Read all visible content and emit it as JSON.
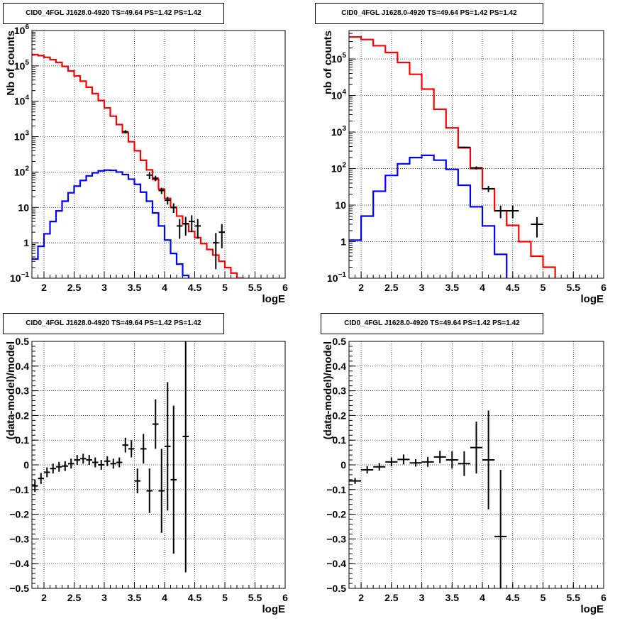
{
  "panels": [
    {
      "title": "CID0_4FGL J1628.0-4920 TS=49.64 PS=1.42 PS=1.42",
      "chart_data": {
        "type": "line",
        "xlabel": "logE",
        "ylabel": "Nb of counts",
        "xlim": [
          1.8,
          6.0
        ],
        "ylim": [
          0.1,
          1000000
        ],
        "yscale": "log",
        "grid": true,
        "xticks": [
          "2",
          "2.5",
          "3",
          "3.5",
          "4",
          "4.5",
          "5",
          "5.5",
          "6"
        ],
        "yticks": [
          "10^-1",
          "1",
          "10",
          "10^2",
          "10^3",
          "10^4",
          "10^5",
          "10^6"
        ],
        "bin_edges": [
          1.8,
          1.9,
          2.0,
          2.1,
          2.2,
          2.3,
          2.4,
          2.5,
          2.6,
          2.7,
          2.8,
          2.9,
          3.0,
          3.1,
          3.2,
          3.3,
          3.4,
          3.5,
          3.6,
          3.7,
          3.8,
          3.9,
          4.0,
          4.1,
          4.2,
          4.3,
          4.4,
          4.5,
          4.6,
          4.7,
          4.8,
          4.9,
          5.0,
          5.1,
          5.2,
          5.3,
          5.4,
          5.5,
          5.6,
          5.7,
          5.8,
          5.9,
          6.0
        ],
        "series": [
          {
            "color": "#ff0000",
            "style": "step",
            "values": [
              210000,
              195000,
              175000,
              150000,
              125000,
              97000,
              72000,
              52000,
              37000,
              25000,
              16500,
              10500,
              6500,
              3800,
              2200,
              1300,
              720,
              400,
              215,
              115,
              62,
              33,
              18,
              10,
              5.7,
              3.4,
              2.1,
              1.4,
              0.95,
              0.65,
              0.45,
              0.3,
              0.2,
              0.14,
              0.1,
              0.07,
              0.06,
              0.06,
              0.06,
              0.06,
              0.06,
              0.06
            ]
          },
          {
            "color": "#0000ff",
            "style": "step",
            "values": [
              0.35,
              0.8,
              1.8,
              4,
              8,
              15,
              26,
              40,
              58,
              78,
              95,
              108,
              113,
              112,
              100,
              85,
              63,
              45,
              27,
              15,
              7,
              3,
              1.2,
              0.5,
              0.25,
              0.12,
              0.06,
              0.06,
              0.06,
              0.06,
              0.06,
              0.06,
              0.06,
              0.06,
              0.06,
              0.06,
              0.06,
              0.06,
              0.06,
              0.06,
              0.06,
              0.06
            ]
          },
          {
            "color": "#000000",
            "style": "points",
            "points": [
              [
                3.35,
                1380,
                150,
                150,
                0.05
              ],
              [
                3.75,
                82,
                18,
                18,
                0.05
              ],
              [
                3.85,
                67,
                12,
                12,
                0.05
              ],
              [
                3.95,
                30,
                6,
                6,
                0.05
              ],
              [
                4.05,
                16,
                4,
                4,
                0.05
              ],
              [
                4.15,
                10,
                3,
                3,
                0.05
              ],
              [
                4.25,
                3,
                1.7,
                1.7,
                0.05
              ],
              [
                4.35,
                3.5,
                1.9,
                1.9,
                0.05
              ],
              [
                4.45,
                4,
                2,
                2,
                0.05
              ],
              [
                4.55,
                3,
                1.7,
                1.7,
                0.05
              ],
              [
                4.85,
                1,
                0.9,
                0.82,
                0.05
              ],
              [
                4.95,
                2,
                1.4,
                1.3,
                0.05
              ]
            ]
          }
        ]
      }
    },
    {
      "title": "CID0_4FGL J1628.0-4920 TS=49.64 PS=1.42 PS=1.42",
      "chart_data": {
        "type": "line",
        "xlabel": "logE",
        "ylabel": "nb of counts",
        "xlim": [
          1.8,
          6.0
        ],
        "ylim": [
          0.1,
          600000
        ],
        "yscale": "log",
        "grid": true,
        "xticks": [
          "2",
          "2.5",
          "3",
          "3.5",
          "4",
          "4.5",
          "5",
          "5.5",
          "6"
        ],
        "yticks": [
          "10^-1",
          "1",
          "10",
          "10^2",
          "10^3",
          "10^4",
          "10^5"
        ],
        "bin_edges": [
          1.8,
          2.0,
          2.2,
          2.4,
          2.6,
          2.8,
          3.0,
          3.2,
          3.4,
          3.6,
          3.8,
          4.0,
          4.2,
          4.4,
          4.6,
          4.8,
          5.0,
          5.2,
          5.4,
          5.6,
          5.8,
          6.0
        ],
        "series": [
          {
            "color": "#ff0000",
            "style": "step",
            "values": [
              400000,
              340000,
              230000,
              150000,
              80000,
              38000,
              15000,
              4200,
              1300,
              370,
              100,
              28,
              7,
              2.8,
              1,
              0.4,
              0.2,
              0.06,
              0.06,
              0.06,
              0.06
            ]
          },
          {
            "color": "#0000ff",
            "style": "step",
            "values": [
              1.1,
              5,
              24,
              65,
              135,
              200,
              230,
              170,
              95,
              35,
              9,
              2.7,
              0.45,
              0.06,
              0.06,
              0.06,
              0.06,
              0.06,
              0.06,
              0.06,
              0.06
            ]
          },
          {
            "color": "#000000",
            "style": "points",
            "points": [
              [
                3.7,
                380,
                20,
                20,
                0.1
              ],
              [
                3.9,
                105,
                10,
                10,
                0.1
              ],
              [
                4.1,
                28,
                5.3,
                5.3,
                0.1
              ],
              [
                4.3,
                7,
                2.6,
                2.6,
                0.1
              ],
              [
                4.5,
                7,
                2.6,
                2.6,
                0.1
              ],
              [
                4.9,
                3,
                1.7,
                1.7,
                0.1
              ]
            ]
          }
        ]
      }
    },
    {
      "title": "CID0_4FGL J1628.0-4920 TS=49.64 PS=1.42 PS=1.42",
      "chart_data": {
        "type": "scatter",
        "xlabel": "logE",
        "ylabel": "(data-model)/model",
        "xlim": [
          1.8,
          6.0
        ],
        "ylim": [
          -0.5,
          0.5
        ],
        "grid": true,
        "xticks": [
          "2",
          "2.5",
          "3",
          "3.5",
          "4",
          "4.5",
          "5",
          "5.5",
          "6"
        ],
        "yticks": [
          "-0.5",
          "-0.4",
          "-0.3",
          "-0.2",
          "-0.1",
          "0",
          "0.1",
          "0.2",
          "0.3",
          "0.4",
          "0.5"
        ],
        "points": [
          [
            1.85,
            -0.085,
            0.025,
            0.05
          ],
          [
            1.95,
            -0.055,
            0.022,
            0.05
          ],
          [
            2.05,
            -0.03,
            0.02,
            0.05
          ],
          [
            2.15,
            -0.015,
            0.02,
            0.05
          ],
          [
            2.25,
            -0.008,
            0.02,
            0.05
          ],
          [
            2.35,
            -0.005,
            0.02,
            0.05
          ],
          [
            2.45,
            0.005,
            0.02,
            0.05
          ],
          [
            2.55,
            0.02,
            0.02,
            0.05
          ],
          [
            2.65,
            0.025,
            0.02,
            0.05
          ],
          [
            2.75,
            0.02,
            0.02,
            0.05
          ],
          [
            2.85,
            0.01,
            0.02,
            0.05
          ],
          [
            2.95,
            0.0,
            0.02,
            0.05
          ],
          [
            3.05,
            0.015,
            0.02,
            0.05
          ],
          [
            3.15,
            0.005,
            0.02,
            0.05
          ],
          [
            3.25,
            0.01,
            0.02,
            0.05
          ],
          [
            3.35,
            0.08,
            0.03,
            0.05
          ],
          [
            3.45,
            0.065,
            0.035,
            0.05
          ],
          [
            3.55,
            -0.065,
            0.05,
            0.05
          ],
          [
            3.65,
            0.065,
            0.06,
            0.05
          ],
          [
            3.75,
            -0.105,
            0.09,
            0.05
          ],
          [
            3.85,
            0.165,
            0.1,
            0.05
          ],
          [
            3.95,
            -0.105,
            0.17,
            0.05
          ],
          [
            4.05,
            0.075,
            0.26,
            0.05
          ],
          [
            4.15,
            -0.06,
            0.3,
            0.05
          ],
          [
            4.35,
            0.115,
            0.55,
            0.05
          ]
        ]
      }
    },
    {
      "title": "CID0_4FGL J1628.0-4920 TS=49.64 PS=1.42 PS=1.42",
      "chart_data": {
        "type": "scatter",
        "xlabel": "logE",
        "ylabel": "(data-model)/model",
        "xlim": [
          1.8,
          6.0
        ],
        "ylim": [
          -0.5,
          0.5
        ],
        "grid": true,
        "xticks": [
          "2",
          "2.5",
          "3",
          "3.5",
          "4",
          "4.5",
          "5",
          "5.5",
          "6"
        ],
        "yticks": [
          "-0.5",
          "-0.4",
          "-0.3",
          "-0.2",
          "-0.1",
          "0",
          "0.1",
          "0.2",
          "0.3",
          "0.4",
          "0.5"
        ],
        "points": [
          [
            1.9,
            -0.065,
            0.012,
            0.1
          ],
          [
            2.1,
            -0.02,
            0.015,
            0.1
          ],
          [
            2.3,
            -0.008,
            0.015,
            0.1
          ],
          [
            2.5,
            0.012,
            0.018,
            0.1
          ],
          [
            2.7,
            0.022,
            0.02,
            0.1
          ],
          [
            2.9,
            0.008,
            0.015,
            0.1
          ],
          [
            3.1,
            0.012,
            0.02,
            0.1
          ],
          [
            3.3,
            0.032,
            0.025,
            0.1
          ],
          [
            3.5,
            0.02,
            0.035,
            0.1
          ],
          [
            3.7,
            0.005,
            0.05,
            0.1
          ],
          [
            3.9,
            0.07,
            0.105,
            0.1
          ],
          [
            4.1,
            0.02,
            0.2,
            0.1
          ],
          [
            4.3,
            -0.29,
            0.27,
            0.1
          ]
        ]
      }
    }
  ]
}
